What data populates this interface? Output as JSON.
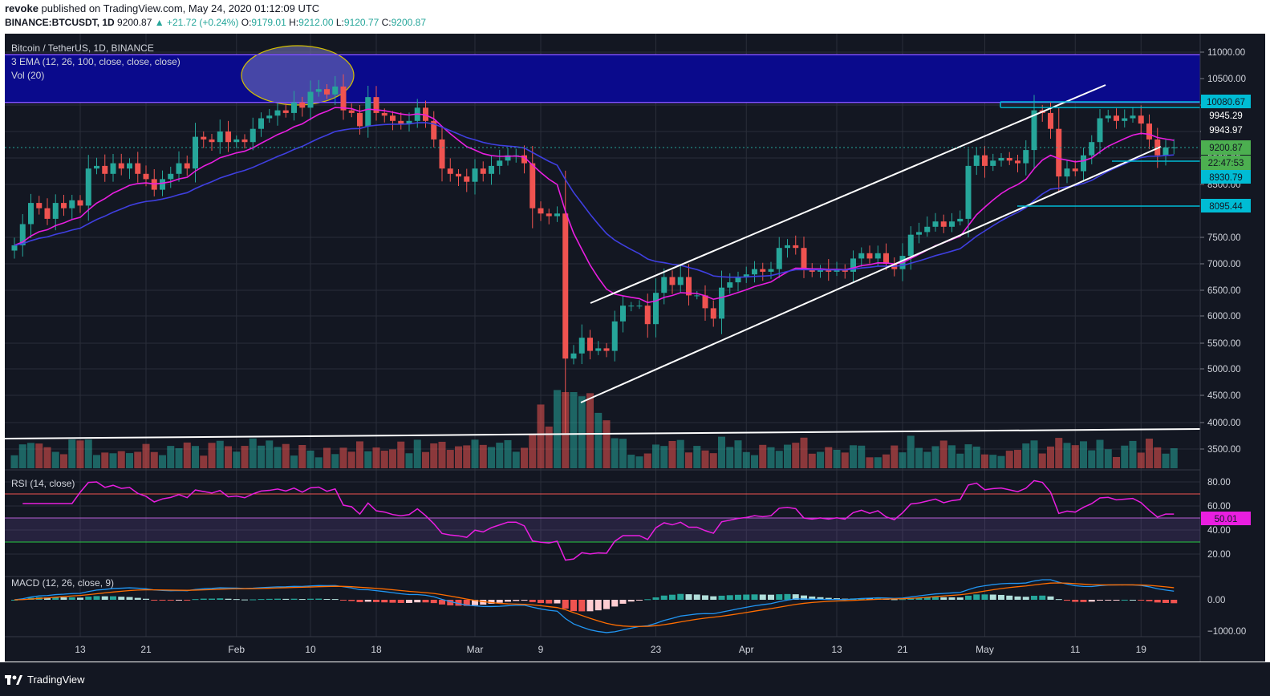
{
  "header": {
    "author": "revoke",
    "published_text": "published on TradingView.com, May 24, 2020 01:12:09 UTC",
    "symbol": "BINANCE:BTCUSDT, 1D",
    "last": "9200.87",
    "change": "+21.72 (+0.24%)",
    "o_label": "O:",
    "o": "9179.01",
    "h_label": "H:",
    "h": "9212.00",
    "l_label": "L:",
    "l": "9120.77",
    "c_label": "C:",
    "c": "9200.87"
  },
  "legend": {
    "title": "Bitcoin / TetherUS, 1D, BINANCE",
    "ema": "3 EMA (12, 26, 100, close, close, close)",
    "vol": "Vol (20)",
    "rsi": "RSI (14, close)",
    "macd": "MACD (12, 26, close, 9)"
  },
  "badges": {
    "b1": "10080.67",
    "b2": "9945.29",
    "b3": "9943.97",
    "b4": "9200.87",
    "b5": "22:47:53",
    "b6": "8930.79",
    "b7": "8095.44",
    "rsi": "50.01"
  },
  "footer": {
    "brand": "TradingView"
  },
  "colors": {
    "background": "#131722",
    "up": "#26a69a",
    "down": "#ef5350",
    "ema_fast": "#e91ee0",
    "ema_slow": "#3f3fe0",
    "zone": "#0a0a8c",
    "badge_cyan": "#00bcd4"
  },
  "chart_data": [
    {
      "type": "candlestick",
      "title": "Bitcoin / TetherUS, 1D, BINANCE",
      "price_ticks": [
        11000,
        10500,
        10000,
        9500,
        9000,
        8500,
        7500,
        7000,
        6500,
        6000,
        5500,
        5000,
        4500,
        4000,
        3500
      ],
      "price_tick_labels": [
        "11000.00",
        "10500.00",
        "10000.00",
        "9500.00",
        "9000.00",
        "8500.00",
        "7500.00",
        "7000.00",
        "6500.00",
        "6000.00",
        "5500.00",
        "5000.00",
        "4500.00",
        "4000.00",
        "3500.00"
      ],
      "ylim": [
        3300,
        11450
      ],
      "x_tick_labels": [
        "13",
        "21",
        "Feb",
        "10",
        "18",
        "Mar",
        "9",
        "23",
        "Apr",
        "13",
        "21",
        "May",
        "11",
        "19"
      ],
      "x_tick_index": [
        8,
        16,
        27,
        36,
        44,
        56,
        64,
        78,
        89,
        100,
        108,
        118,
        129,
        137
      ],
      "resistance_zone": [
        10050,
        10950
      ],
      "start_date": "2020-01-05",
      "close": [
        7350,
        7750,
        8150,
        8050,
        7850,
        8150,
        8050,
        8200,
        8100,
        8800,
        8850,
        8700,
        8900,
        8800,
        8900,
        8700,
        8600,
        8400,
        8600,
        8700,
        8900,
        8800,
        9400,
        9350,
        9300,
        9500,
        9300,
        9350,
        9300,
        9550,
        9750,
        9800,
        9900,
        9850,
        10050,
        9950,
        10250,
        10300,
        10200,
        10350,
        9900,
        9850,
        9600,
        10150,
        9850,
        9800,
        9700,
        9650,
        9700,
        9950,
        9700,
        9350,
        8800,
        8700,
        8650,
        8550,
        8800,
        8700,
        8850,
        8950,
        9050,
        9050,
        8900,
        8050,
        7950,
        7900,
        7950,
        5200,
        5300,
        5600,
        5350,
        5400,
        5350,
        5900,
        6200,
        6200,
        6200,
        5850,
        6450,
        6750,
        6600,
        6750,
        6400,
        6400,
        6150,
        5950,
        6550,
        6650,
        6750,
        6800,
        6900,
        6850,
        6900,
        7300,
        7350,
        7300,
        6900,
        6850,
        6900,
        6850,
        6900,
        6850,
        7100,
        7200,
        7100,
        7200,
        7000,
        6900,
        7150,
        7550,
        7600,
        7700,
        7800,
        7700,
        7800,
        7850,
        8850,
        9050,
        8850,
        8950,
        9000,
        8950,
        8900,
        9150,
        9900,
        9850,
        9550,
        8650,
        8800,
        8750,
        9050,
        9300,
        9750,
        9800,
        9700,
        9750,
        9800,
        9650,
        9350,
        9050,
        9200,
        9200
      ]
    },
    {
      "type": "bar",
      "title": "Vol (20)",
      "note": "volume bars colored by candle direction"
    },
    {
      "type": "line",
      "title": "RSI (14, close)",
      "ylim": [
        0,
        90
      ],
      "ticks": [
        80,
        60,
        40,
        20
      ],
      "tick_labels": [
        "80.00",
        "60.00",
        "40.00",
        "20.00"
      ],
      "bands": [
        70,
        50,
        30
      ],
      "last_value": 50.01
    },
    {
      "type": "line",
      "title": "MACD (12, 26, close, 9)",
      "ticks": [
        0,
        -1000
      ],
      "tick_labels": [
        "0.00",
        "−1000.00"
      ],
      "ylim": [
        -1300,
        300
      ]
    }
  ]
}
